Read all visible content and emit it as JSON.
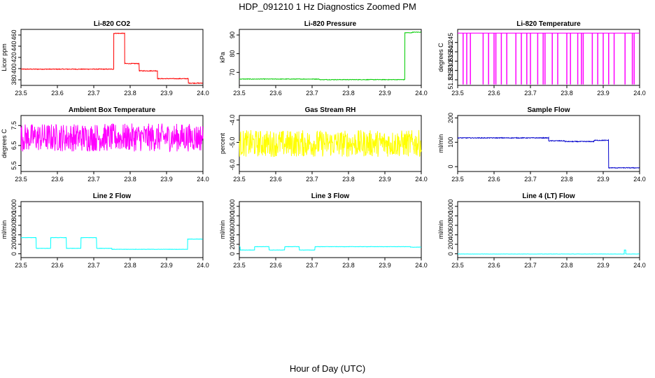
{
  "title": "HDP_091210  1 Hz Diagnostics Zoomed PM",
  "xlabel": "Hour of Day (UTC)",
  "chart_data": [
    {
      "type": "line",
      "title": "Li-820 CO2",
      "ylabel": "Licor ppm",
      "color": "#ff0000",
      "xlim": [
        23.5,
        24.0
      ],
      "ylim": [
        370,
        470
      ],
      "x_ticks": [
        23.5,
        23.6,
        23.7,
        23.8,
        23.9,
        24.0
      ],
      "x_tick_labels": [
        "23.5",
        "23.6",
        "23.7",
        "23.8",
        "23.9",
        "24.0"
      ],
      "y_ticks": [
        380,
        400,
        420,
        440,
        460
      ],
      "y_tick_labels": [
        "380",
        "400",
        "420",
        "440",
        "460"
      ],
      "segments": [
        [
          23.5,
          23.755,
          399
        ],
        [
          23.755,
          23.785,
          463
        ],
        [
          23.785,
          23.825,
          409
        ],
        [
          23.825,
          23.875,
          396
        ],
        [
          23.875,
          23.96,
          382
        ],
        [
          23.96,
          24.0,
          374
        ]
      ],
      "noise": 0.6
    },
    {
      "type": "line",
      "title": "Li-820 Pressure",
      "ylabel": "kPa",
      "color": "#00cc00",
      "xlim": [
        23.5,
        24.0
      ],
      "ylim": [
        63,
        93
      ],
      "x_ticks": [
        23.5,
        23.6,
        23.7,
        23.8,
        23.9,
        24.0
      ],
      "x_tick_labels": [
        "23.5",
        "23.6",
        "23.7",
        "23.8",
        "23.9",
        "24.0"
      ],
      "y_ticks": [
        70,
        80,
        90
      ],
      "y_tick_labels": [
        "70",
        "80",
        "90"
      ],
      "segments": [
        [
          23.5,
          23.72,
          66.4
        ],
        [
          23.72,
          23.955,
          66.1
        ],
        [
          23.955,
          23.975,
          91.2
        ],
        [
          23.975,
          24.0,
          91.5
        ]
      ],
      "noise": 0.15
    },
    {
      "type": "spikes",
      "title": "Li-820 Temperature",
      "ylabel": "degrees C",
      "color": "#ff00ff",
      "xlim": [
        23.5,
        24.0
      ],
      "ylim": [
        51.222,
        51.252
      ],
      "x_ticks": [
        23.5,
        23.6,
        23.7,
        23.8,
        23.9,
        24.0
      ],
      "x_tick_labels": [
        "23.5",
        "23.6",
        "23.7",
        "23.8",
        "23.9",
        "24.0"
      ],
      "y_ticks": [
        51.225,
        51.23,
        51.235,
        51.24,
        51.245
      ],
      "y_tick_labels": [
        "51.225",
        "51.230",
        "51.235",
        "51.240",
        "51.245"
      ],
      "high": 51.25,
      "low": 51.2225,
      "spike_x": [
        23.515,
        23.525,
        23.535,
        23.57,
        23.585,
        23.6,
        23.605,
        23.62,
        23.635,
        23.66,
        23.675,
        23.69,
        23.7,
        23.72,
        23.735,
        23.74,
        23.76,
        23.775,
        23.8,
        23.81,
        23.83,
        23.84,
        23.845,
        23.87,
        23.885,
        23.9,
        23.915,
        23.93,
        23.96,
        23.98,
        23.985
      ]
    },
    {
      "type": "line",
      "title": "Ambient Box Temperature",
      "ylabel": "degrees C",
      "color": "#ff00ff",
      "xlim": [
        23.5,
        24.0
      ],
      "ylim": [
        5.2,
        8.0
      ],
      "x_ticks": [
        23.5,
        23.6,
        23.7,
        23.8,
        23.9,
        24.0
      ],
      "x_tick_labels": [
        "23.5",
        "23.6",
        "23.7",
        "23.8",
        "23.9",
        "24.0"
      ],
      "y_ticks": [
        5.5,
        6.5,
        7.5
      ],
      "y_tick_labels": [
        "5.5",
        "6.5",
        "7.5"
      ],
      "segments": [
        [
          23.5,
          24.0,
          6.9
        ]
      ],
      "noise": 0.7
    },
    {
      "type": "line",
      "title": "Gas Stream RH",
      "ylabel": "percent",
      "color": "#ffff00",
      "xlim": [
        23.5,
        24.0
      ],
      "ylim": [
        -6.3,
        -3.8
      ],
      "x_ticks": [
        23.5,
        23.6,
        23.7,
        23.8,
        23.9,
        24.0
      ],
      "x_tick_labels": [
        "23.5",
        "23.6",
        "23.7",
        "23.8",
        "23.9",
        "24.0"
      ],
      "y_ticks": [
        -6.0,
        -5.0,
        -4.0
      ],
      "y_tick_labels": [
        "-6.0",
        "-5.0",
        "-4.0"
      ],
      "segments": [
        [
          23.5,
          24.0,
          -5.05
        ]
      ],
      "noise": 0.6
    },
    {
      "type": "line",
      "title": "Sample Flow",
      "ylabel": "ml/min",
      "color": "#0000cc",
      "xlim": [
        23.5,
        24.0
      ],
      "ylim": [
        -20,
        210
      ],
      "x_ticks": [
        23.5,
        23.6,
        23.7,
        23.8,
        23.9,
        24.0
      ],
      "x_tick_labels": [
        "23.5",
        "23.6",
        "23.7",
        "23.8",
        "23.9",
        "24.0"
      ],
      "y_ticks": [
        0,
        100,
        200
      ],
      "y_tick_labels": [
        "0",
        "100",
        "200"
      ],
      "segments": [
        [
          23.5,
          23.75,
          118
        ],
        [
          23.75,
          23.795,
          106
        ],
        [
          23.795,
          23.875,
          103
        ],
        [
          23.875,
          23.915,
          108
        ],
        [
          23.915,
          24.0,
          -5
        ]
      ],
      "noise": 1.5
    },
    {
      "type": "line",
      "title": "Line 2 Flow",
      "ylabel": "ml/min",
      "color": "#00ffff",
      "xlim": [
        23.5,
        24.0
      ],
      "ylim": [
        -80,
        1100
      ],
      "x_ticks": [
        23.5,
        23.6,
        23.7,
        23.8,
        23.9,
        24.0
      ],
      "x_tick_labels": [
        "23.5",
        "23.6",
        "23.7",
        "23.8",
        "23.9",
        "24.0"
      ],
      "y_ticks": [
        0,
        200,
        400,
        600,
        800,
        1000
      ],
      "y_tick_labels": [
        "0",
        "200",
        "400",
        "600",
        "800",
        "1000"
      ],
      "segments": [
        [
          23.5,
          23.542,
          340
        ],
        [
          23.542,
          23.582,
          115
        ],
        [
          23.582,
          23.625,
          340
        ],
        [
          23.625,
          23.665,
          115
        ],
        [
          23.665,
          23.708,
          340
        ],
        [
          23.708,
          23.75,
          115
        ],
        [
          23.75,
          23.958,
          95
        ],
        [
          23.958,
          24.0,
          310
        ]
      ],
      "noise": 3
    },
    {
      "type": "line",
      "title": "Line 3 Flow",
      "ylabel": "ml/min",
      "color": "#00ffff",
      "xlim": [
        23.5,
        24.0
      ],
      "ylim": [
        -80,
        1100
      ],
      "x_ticks": [
        23.5,
        23.6,
        23.7,
        23.8,
        23.9,
        24.0
      ],
      "x_tick_labels": [
        "23.5",
        "23.6",
        "23.7",
        "23.8",
        "23.9",
        "24.0"
      ],
      "y_ticks": [
        0,
        200,
        400,
        600,
        800,
        1000
      ],
      "y_tick_labels": [
        "0",
        "200",
        "400",
        "600",
        "800",
        "1000"
      ],
      "segments": [
        [
          23.5,
          23.5025,
          150
        ],
        [
          23.5025,
          23.542,
          80
        ],
        [
          23.542,
          23.582,
          150
        ],
        [
          23.582,
          23.625,
          80
        ],
        [
          23.625,
          23.665,
          150
        ],
        [
          23.665,
          23.708,
          80
        ],
        [
          23.708,
          23.97,
          150
        ],
        [
          23.97,
          24.0,
          140
        ]
      ],
      "noise": 3
    },
    {
      "type": "line",
      "title": "Line 4 (LT) Flow",
      "ylabel": "ml/min",
      "color": "#00ffff",
      "xlim": [
        23.5,
        24.0
      ],
      "ylim": [
        -80,
        1100
      ],
      "x_ticks": [
        23.5,
        23.6,
        23.7,
        23.8,
        23.9,
        24.0
      ],
      "x_tick_labels": [
        "23.5",
        "23.6",
        "23.7",
        "23.8",
        "23.9",
        "24.0"
      ],
      "y_ticks": [
        0,
        200,
        400,
        600,
        800,
        1000
      ],
      "y_tick_labels": [
        "0",
        "200",
        "400",
        "600",
        "800",
        "1000"
      ],
      "segments": [
        [
          23.5,
          23.958,
          -5
        ],
        [
          23.958,
          23.962,
          80
        ],
        [
          23.962,
          24.0,
          -5
        ]
      ],
      "noise": 2
    }
  ]
}
